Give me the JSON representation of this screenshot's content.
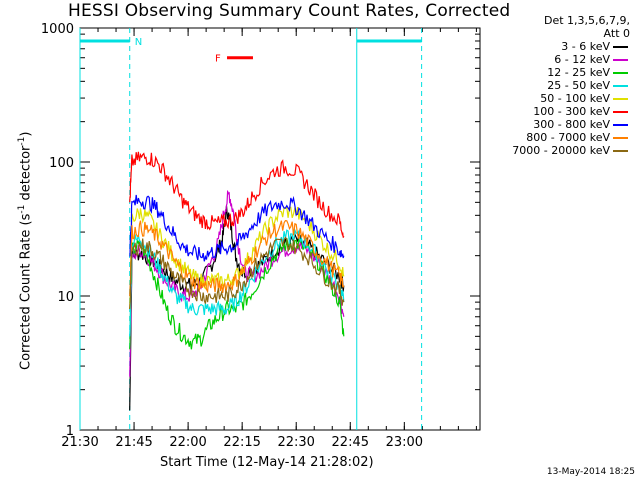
{
  "chart_data": {
    "type": "line",
    "title": "HESSI Observing Summary Count Rates, Corrected",
    "xlabel": "Start Time (12-May-14 21:28:02)",
    "ylabel_main": "Corrected Count Rate (s",
    "ylabel_sup1": "-1",
    "ylabel_mid": " detector",
    "ylabel_sup2": "-1",
    "ylabel_end": ")",
    "y_scale": "log",
    "ylim": [
      1,
      1000
    ],
    "xlim_minutes": [
      21.5,
      23.35
    ],
    "x_ticks": [
      "21:30",
      "21:45",
      "22:00",
      "22:15",
      "22:30",
      "22:45",
      "23:00"
    ],
    "y_ticks": [
      "1",
      "10",
      "100",
      "1000"
    ],
    "legend_header": [
      "Det 1,3,5,6,7,9,",
      "Att 0"
    ],
    "series": [
      {
        "name": "3 - 6 keV",
        "color": "#000000",
        "points": [
          [
            21.73,
            1.4
          ],
          [
            21.74,
            20
          ],
          [
            21.78,
            21
          ],
          [
            21.82,
            19
          ],
          [
            21.86,
            17
          ],
          [
            21.9,
            15
          ],
          [
            21.94,
            13
          ],
          [
            21.98,
            12
          ],
          [
            22.02,
            12
          ],
          [
            22.06,
            13
          ],
          [
            22.1,
            16
          ],
          [
            22.14,
            22
          ],
          [
            22.16,
            27
          ],
          [
            22.18,
            45
          ],
          [
            22.2,
            32
          ],
          [
            22.22,
            20
          ],
          [
            22.25,
            15
          ],
          [
            22.3,
            16
          ],
          [
            22.35,
            18
          ],
          [
            22.4,
            22
          ],
          [
            22.45,
            24
          ],
          [
            22.5,
            26
          ],
          [
            22.55,
            24
          ],
          [
            22.6,
            20
          ],
          [
            22.65,
            17
          ],
          [
            22.7,
            14
          ],
          [
            22.72,
            12
          ]
        ]
      },
      {
        "name": "6 - 12 keV",
        "color": "#cc00cc",
        "points": [
          [
            21.73,
            2.5
          ],
          [
            21.74,
            20
          ],
          [
            21.78,
            22
          ],
          [
            21.82,
            19
          ],
          [
            21.86,
            16
          ],
          [
            21.9,
            13
          ],
          [
            21.94,
            11
          ],
          [
            21.98,
            10
          ],
          [
            22.02,
            10
          ],
          [
            22.06,
            12
          ],
          [
            22.1,
            17
          ],
          [
            22.14,
            25
          ],
          [
            22.17,
            45
          ],
          [
            22.19,
            58
          ],
          [
            22.21,
            42
          ],
          [
            22.23,
            25
          ],
          [
            22.26,
            15
          ],
          [
            22.3,
            14
          ],
          [
            22.35,
            16
          ],
          [
            22.4,
            20
          ],
          [
            22.45,
            22
          ],
          [
            22.5,
            24
          ],
          [
            22.55,
            22
          ],
          [
            22.6,
            18
          ],
          [
            22.65,
            14
          ],
          [
            22.7,
            10
          ],
          [
            22.72,
            7
          ]
        ]
      },
      {
        "name": "12 - 25 keV",
        "color": "#00cc00",
        "points": [
          [
            21.73,
            4
          ],
          [
            21.74,
            22
          ],
          [
            21.78,
            24
          ],
          [
            21.82,
            18
          ],
          [
            21.86,
            12
          ],
          [
            21.9,
            8
          ],
          [
            21.94,
            6
          ],
          [
            21.98,
            5
          ],
          [
            22.02,
            4.5
          ],
          [
            22.06,
            4.8
          ],
          [
            22.1,
            6
          ],
          [
            22.14,
            7
          ],
          [
            22.18,
            8
          ],
          [
            22.22,
            8
          ],
          [
            22.26,
            9
          ],
          [
            22.3,
            11
          ],
          [
            22.35,
            15
          ],
          [
            22.4,
            20
          ],
          [
            22.45,
            24
          ],
          [
            22.5,
            25
          ],
          [
            22.55,
            22
          ],
          [
            22.6,
            18
          ],
          [
            22.65,
            13
          ],
          [
            22.7,
            9
          ],
          [
            22.72,
            5
          ]
        ]
      },
      {
        "name": "25 - 50 keV",
        "color": "#00e0e0",
        "points": [
          [
            21.73,
            5
          ],
          [
            21.74,
            25
          ],
          [
            21.78,
            27
          ],
          [
            21.82,
            22
          ],
          [
            21.86,
            17
          ],
          [
            21.9,
            13
          ],
          [
            21.94,
            10
          ],
          [
            21.98,
            9
          ],
          [
            22.02,
            8
          ],
          [
            22.06,
            8
          ],
          [
            22.1,
            8
          ],
          [
            22.14,
            8
          ],
          [
            22.18,
            8
          ],
          [
            22.22,
            9
          ],
          [
            22.26,
            11
          ],
          [
            22.3,
            14
          ],
          [
            22.35,
            19
          ],
          [
            22.4,
            24
          ],
          [
            22.45,
            27
          ],
          [
            22.5,
            28
          ],
          [
            22.55,
            25
          ],
          [
            22.6,
            20
          ],
          [
            22.65,
            15
          ],
          [
            22.7,
            12
          ],
          [
            22.72,
            9
          ]
        ]
      },
      {
        "name": "50 - 100 keV",
        "color": "#e0e000",
        "points": [
          [
            21.73,
            8
          ],
          [
            21.74,
            38
          ],
          [
            21.78,
            42
          ],
          [
            21.82,
            38
          ],
          [
            21.86,
            30
          ],
          [
            21.9,
            24
          ],
          [
            21.94,
            19
          ],
          [
            21.98,
            16
          ],
          [
            22.02,
            14
          ],
          [
            22.06,
            13
          ],
          [
            22.1,
            13
          ],
          [
            22.14,
            13
          ],
          [
            22.18,
            13
          ],
          [
            22.22,
            14
          ],
          [
            22.26,
            17
          ],
          [
            22.3,
            22
          ],
          [
            22.35,
            30
          ],
          [
            22.4,
            38
          ],
          [
            22.45,
            43
          ],
          [
            22.5,
            42
          ],
          [
            22.55,
            36
          ],
          [
            22.6,
            28
          ],
          [
            22.65,
            22
          ],
          [
            22.7,
            18
          ],
          [
            22.72,
            14
          ]
        ]
      },
      {
        "name": "100 - 300 keV",
        "color": "#ff0000",
        "points": [
          [
            21.73,
            50
          ],
          [
            21.74,
            100
          ],
          [
            21.78,
            107
          ],
          [
            21.82,
            108
          ],
          [
            21.86,
            98
          ],
          [
            21.9,
            80
          ],
          [
            21.94,
            63
          ],
          [
            21.98,
            50
          ],
          [
            22.02,
            42
          ],
          [
            22.06,
            37
          ],
          [
            22.1,
            35
          ],
          [
            22.14,
            35
          ],
          [
            22.18,
            36
          ],
          [
            22.22,
            38
          ],
          [
            22.26,
            44
          ],
          [
            22.3,
            56
          ],
          [
            22.35,
            72
          ],
          [
            22.4,
            86
          ],
          [
            22.45,
            91
          ],
          [
            22.5,
            85
          ],
          [
            22.55,
            68
          ],
          [
            22.6,
            52
          ],
          [
            22.65,
            42
          ],
          [
            22.7,
            36
          ],
          [
            22.72,
            28
          ]
        ]
      },
      {
        "name": "300 - 800 keV",
        "color": "#0000ff",
        "points": [
          [
            21.73,
            20
          ],
          [
            21.74,
            48
          ],
          [
            21.78,
            52
          ],
          [
            21.82,
            50
          ],
          [
            21.86,
            44
          ],
          [
            21.9,
            35
          ],
          [
            21.94,
            28
          ],
          [
            21.98,
            23
          ],
          [
            22.02,
            21
          ],
          [
            22.06,
            20
          ],
          [
            22.1,
            21
          ],
          [
            22.14,
            22
          ],
          [
            22.18,
            23
          ],
          [
            22.22,
            24
          ],
          [
            22.26,
            28
          ],
          [
            22.3,
            34
          ],
          [
            22.35,
            42
          ],
          [
            22.4,
            48
          ],
          [
            22.45,
            50
          ],
          [
            22.5,
            46
          ],
          [
            22.55,
            38
          ],
          [
            22.6,
            31
          ],
          [
            22.65,
            26
          ],
          [
            22.7,
            22
          ],
          [
            22.72,
            20
          ]
        ]
      },
      {
        "name": "800 - 7000 keV",
        "color": "#ff8000",
        "points": [
          [
            21.73,
            10
          ],
          [
            21.74,
            30
          ],
          [
            21.78,
            32
          ],
          [
            21.82,
            31
          ],
          [
            21.86,
            27
          ],
          [
            21.9,
            22
          ],
          [
            21.94,
            18
          ],
          [
            21.98,
            15
          ],
          [
            22.02,
            13
          ],
          [
            22.06,
            12
          ],
          [
            22.1,
            12
          ],
          [
            22.14,
            12
          ],
          [
            22.18,
            12
          ],
          [
            22.22,
            13
          ],
          [
            22.26,
            16
          ],
          [
            22.3,
            20
          ],
          [
            22.35,
            26
          ],
          [
            22.4,
            31
          ],
          [
            22.45,
            33
          ],
          [
            22.5,
            31
          ],
          [
            22.55,
            26
          ],
          [
            22.6,
            21
          ],
          [
            22.65,
            17
          ],
          [
            22.7,
            14
          ],
          [
            22.72,
            12
          ]
        ]
      },
      {
        "name": "7000 - 20000 keV",
        "color": "#8b6914",
        "points": [
          [
            21.73,
            8
          ],
          [
            21.74,
            22
          ],
          [
            21.78,
            24
          ],
          [
            21.82,
            23
          ],
          [
            21.86,
            20
          ],
          [
            21.9,
            17
          ],
          [
            21.94,
            14
          ],
          [
            21.98,
            12
          ],
          [
            22.02,
            11
          ],
          [
            22.06,
            10
          ],
          [
            22.1,
            10
          ],
          [
            22.14,
            10
          ],
          [
            22.18,
            10
          ],
          [
            22.22,
            11
          ],
          [
            22.26,
            13
          ],
          [
            22.3,
            16
          ],
          [
            22.35,
            20
          ],
          [
            22.4,
            24
          ],
          [
            22.45,
            25
          ],
          [
            22.5,
            23
          ],
          [
            22.55,
            20
          ],
          [
            22.6,
            16
          ],
          [
            22.65,
            13
          ],
          [
            22.7,
            11
          ],
          [
            22.72,
            9
          ]
        ]
      }
    ],
    "annotations": {
      "night_label": "N",
      "flare_label": "F",
      "night_color": "#00e0e0",
      "flare_color": "#ff0000",
      "night_bars": [
        [
          21.5,
          21.73
        ],
        [
          22.78,
          23.08
        ]
      ],
      "night_dashed": [
        21.73,
        23.08
      ],
      "night_solid": [
        21.5,
        22.78
      ],
      "flare_bar": [
        22.18,
        22.3
      ]
    }
  },
  "footer": {
    "date": "13-May-2014 18:25"
  }
}
